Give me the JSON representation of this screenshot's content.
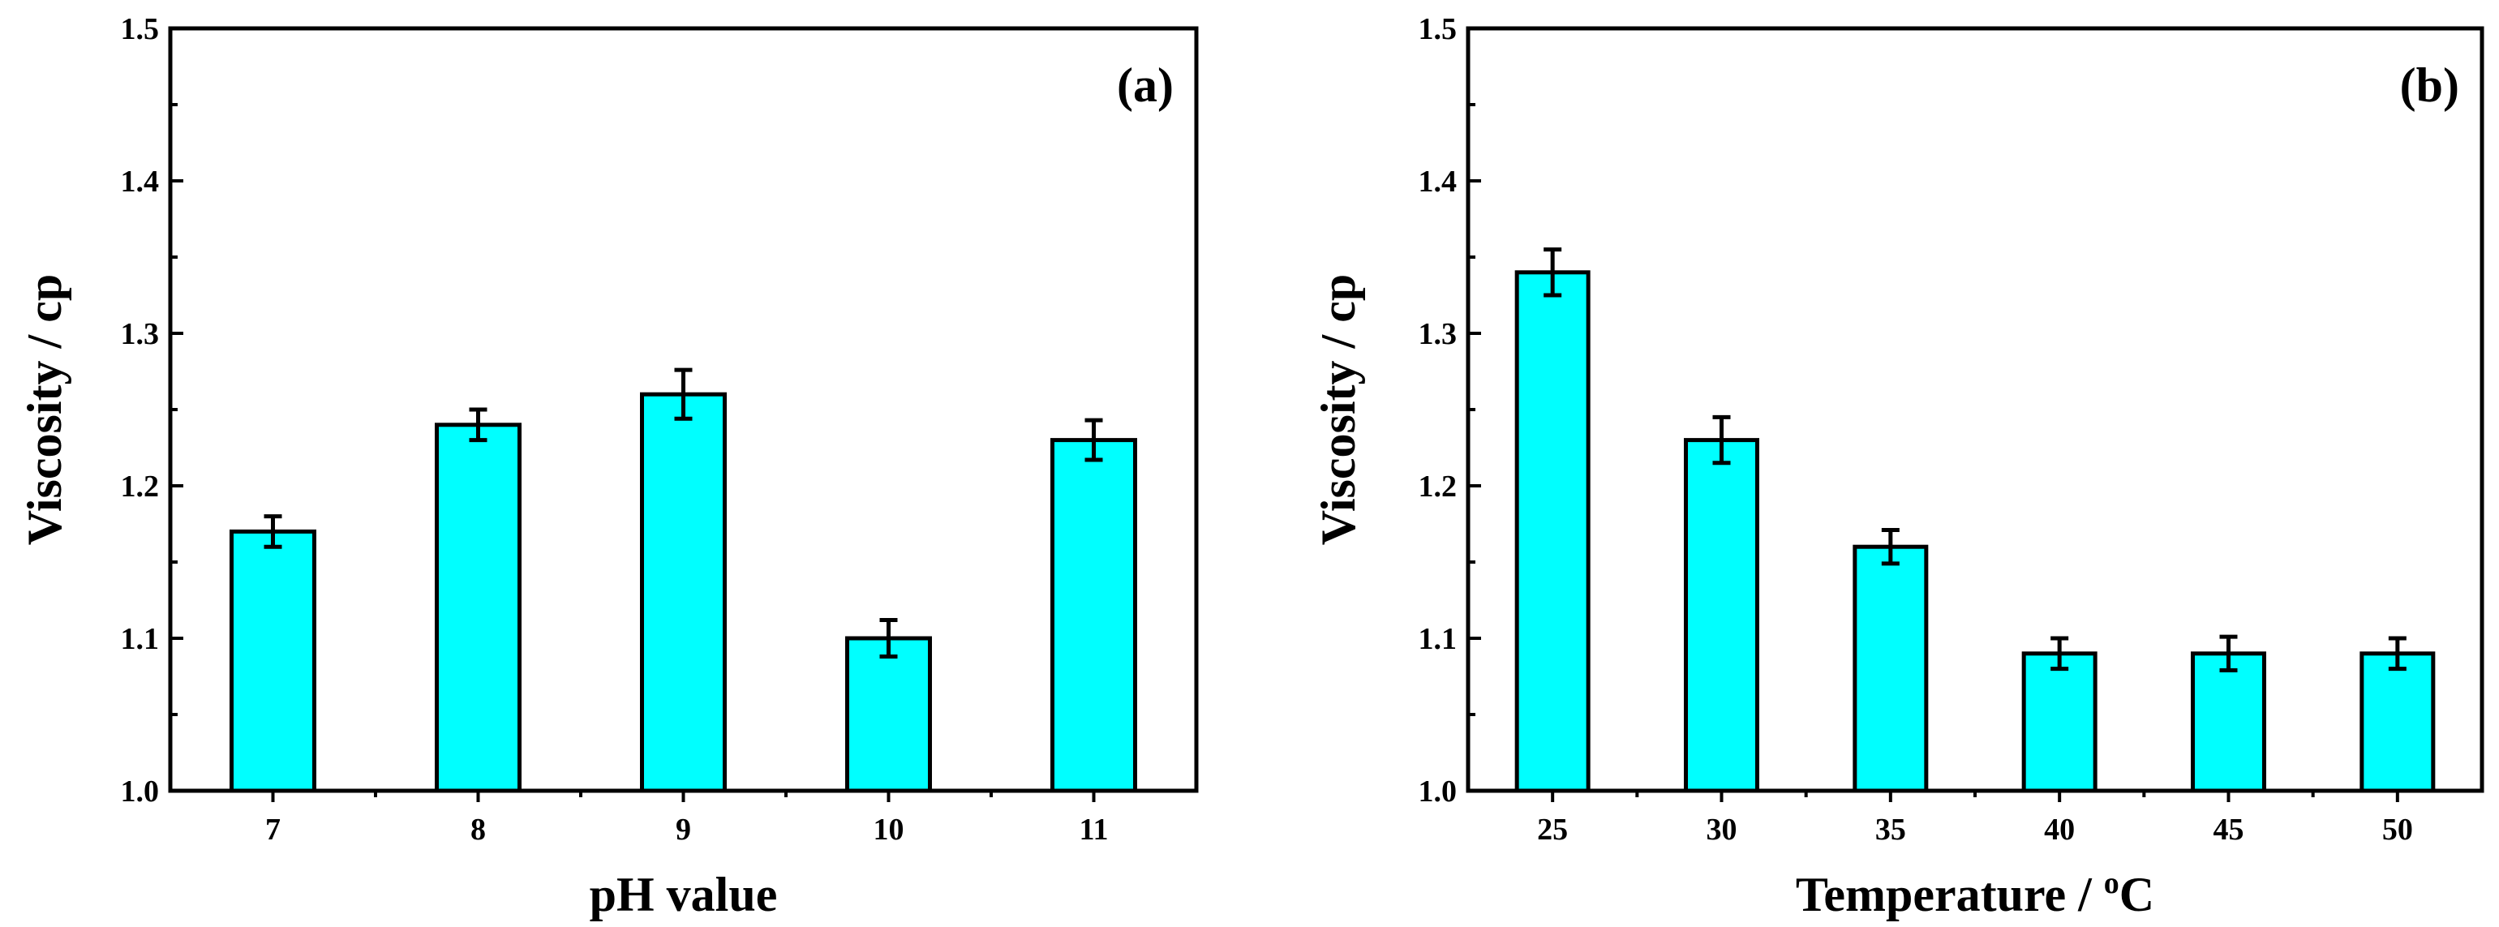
{
  "colors": {
    "bar_fill": "#00FFFF",
    "bar_stroke": "#000000",
    "axis": "#000000",
    "background": "#FFFFFF"
  },
  "chart_data": [
    {
      "type": "bar",
      "panel_label": "(a)",
      "title": "",
      "xlabel": "pH value",
      "ylabel": "Viscosity / cp",
      "categories": [
        "7",
        "8",
        "9",
        "10",
        "11"
      ],
      "values": [
        1.17,
        1.24,
        1.26,
        1.1,
        1.23
      ],
      "errors": [
        0.01,
        0.01,
        0.016,
        0.012,
        0.013
      ],
      "ylim": [
        1.0,
        1.5
      ],
      "yticks": [
        "1.0",
        "1.1",
        "1.2",
        "1.3",
        "1.4",
        "1.5"
      ],
      "grid": false,
      "legend": "none"
    },
    {
      "type": "bar",
      "panel_label": "(b)",
      "title": "",
      "xlabel": "Temperature / ",
      "xlabel_superscript": "o",
      "xlabel_suffix": "C",
      "ylabel": "Viscosity / cp",
      "categories": [
        "25",
        "30",
        "35",
        "40",
        "45",
        "50"
      ],
      "values": [
        1.34,
        1.23,
        1.16,
        1.09,
        1.09,
        1.09
      ],
      "errors": [
        0.015,
        0.015,
        0.011,
        0.01,
        0.011,
        0.01
      ],
      "ylim": [
        1.0,
        1.5
      ],
      "yticks": [
        "1.0",
        "1.1",
        "1.2",
        "1.3",
        "1.4",
        "1.5"
      ],
      "grid": false,
      "legend": "none"
    }
  ]
}
